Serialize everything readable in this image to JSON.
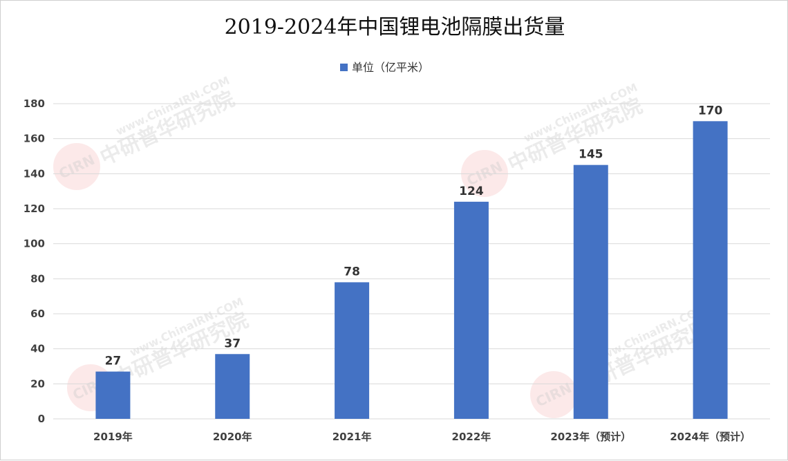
{
  "chart_data": {
    "type": "bar",
    "title": "2019-2024年中国锂电池隔膜出货量",
    "legend": {
      "entries": [
        "单位（亿平米）"
      ],
      "position": "top"
    },
    "categories": [
      "2019年",
      "2020年",
      "2021年",
      "2022年",
      "2023年（预计）",
      "2024年（预计）"
    ],
    "series": [
      {
        "name": "单位（亿平米）",
        "values": [
          27,
          37,
          78,
          124,
          145,
          170
        ]
      }
    ],
    "data_labels": [
      "27",
      "37",
      "78",
      "124",
      "145",
      "170"
    ],
    "y_ticks": [
      "0",
      "20",
      "40",
      "60",
      "80",
      "100",
      "120",
      "140",
      "160",
      "180"
    ],
    "ylim": [
      0,
      180
    ],
    "grid": true,
    "bar_color": "#4472c4"
  },
  "watermark": {
    "logo": "CIRN",
    "url": "www.ChinaIRN.COM",
    "name": "中研普华研究院"
  }
}
